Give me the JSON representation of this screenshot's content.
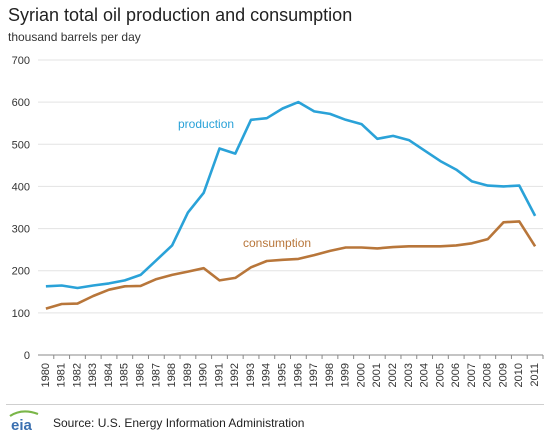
{
  "title": "Syrian total oil production and consumption",
  "subtitle": "thousand barrels per day",
  "source": "Source: U.S. Energy Information Administration",
  "logo_text": "eia",
  "colors": {
    "production": "#2aa2d8",
    "consumption": "#b8763a",
    "grid": "#e3e3e3",
    "axis": "#888888",
    "logo_green": "#7ab648"
  },
  "chart_data": {
    "type": "line",
    "title": "Syrian total oil production and consumption",
    "ylabel": "thousand barrels per day",
    "xlabel": "",
    "ylim": [
      0,
      700
    ],
    "yticks": [
      0,
      100,
      200,
      300,
      400,
      500,
      600,
      700
    ],
    "grid": true,
    "x": [
      "1980",
      "1981",
      "1982",
      "1983",
      "1984",
      "1985",
      "1986",
      "1987",
      "1988",
      "1989",
      "1990",
      "1991",
      "1992",
      "1993",
      "1994",
      "1995",
      "1996",
      "1997",
      "1998",
      "1999",
      "2000",
      "2001",
      "2002",
      "2003",
      "2004",
      "2005",
      "2006",
      "2007",
      "2008",
      "2009",
      "2010",
      "2011"
    ],
    "series": [
      {
        "name": "production",
        "color": "#2aa2d8",
        "values": [
          163,
          165,
          159,
          165,
          170,
          177,
          190,
          225,
          260,
          338,
          385,
          490,
          478,
          558,
          562,
          585,
          600,
          578,
          572,
          558,
          548,
          513,
          520,
          510,
          485,
          460,
          440,
          412,
          402,
          400,
          402,
          330
        ]
      },
      {
        "name": "consumption",
        "color": "#b8763a",
        "values": [
          110,
          121,
          122,
          140,
          155,
          163,
          164,
          180,
          190,
          198,
          206,
          177,
          183,
          208,
          223,
          226,
          228,
          237,
          247,
          255,
          255,
          253,
          256,
          258,
          258,
          258,
          260,
          265,
          275,
          315,
          317,
          258
        ]
      }
    ]
  }
}
